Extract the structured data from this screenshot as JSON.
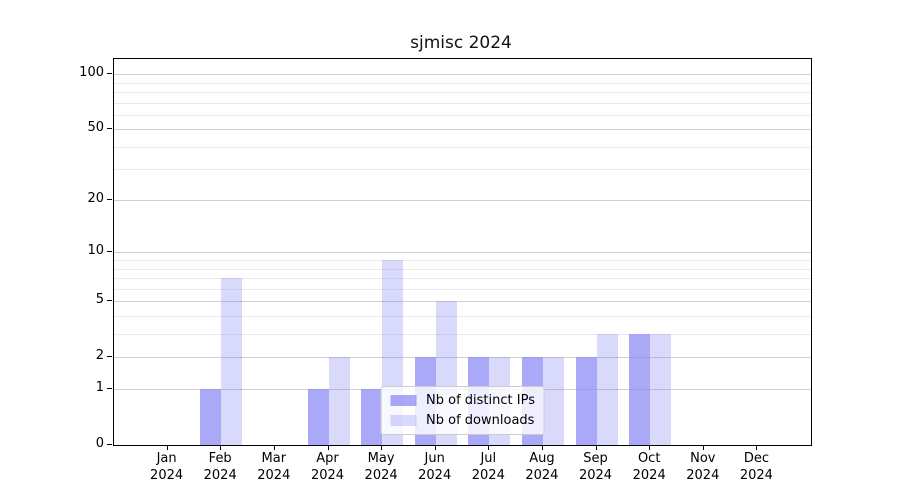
{
  "figure": {
    "title": "sjmisc 2024"
  },
  "colors": {
    "background": "#ffffff",
    "bar_base": "#8484f5",
    "grid_major": "#d0d0d0",
    "grid_minor": "#e9e9e9",
    "axis": "#000000",
    "legend_border": "#cccccc"
  },
  "chart_data": {
    "type": "bar",
    "title": "sjmisc 2024",
    "categories": [
      "Jan",
      "Feb",
      "Mar",
      "Apr",
      "May",
      "Jun",
      "Jul",
      "Aug",
      "Sep",
      "Oct",
      "Nov",
      "Dec"
    ],
    "category_year_label": "2024",
    "series": [
      {
        "name": "Nb of distinct IPs",
        "color_base": "#8484f5",
        "alpha": 0.7,
        "values": [
          0,
          1,
          0,
          1,
          1,
          2,
          2,
          2,
          2,
          3,
          0,
          0
        ]
      },
      {
        "name": "Nb of downloads",
        "color_base": "#8484f5",
        "alpha": 0.31,
        "values": [
          0,
          7,
          0,
          2,
          9,
          5,
          2,
          2,
          3,
          3,
          0,
          0
        ]
      }
    ],
    "xlabel": "",
    "ylabel": "",
    "yscale": "log10(value+1)",
    "ylim": [
      0,
      121
    ],
    "y_major_ticks": [
      0,
      1,
      2,
      5,
      10,
      20,
      50,
      100
    ],
    "y_minor_gridlines": [
      3,
      4,
      6,
      7,
      8,
      9,
      30,
      40,
      60,
      70,
      80,
      90
    ],
    "grid": true,
    "legend_position": "lower center"
  }
}
